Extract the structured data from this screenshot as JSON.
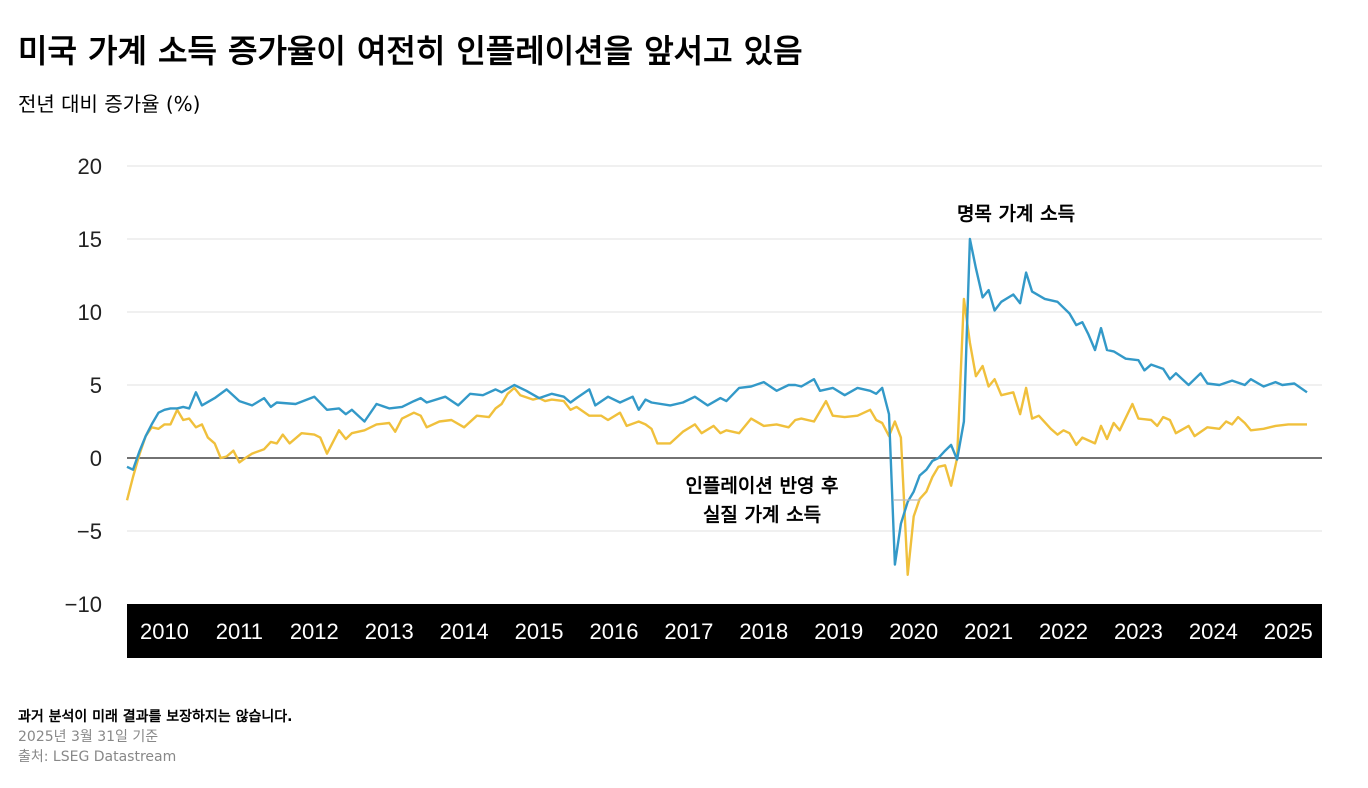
{
  "header": {
    "title": "미국 가계 소득 증가율이 여전히 인플레이션을 앞서고 있음",
    "subtitle": "전년 대비 증가율 (%)"
  },
  "footer": {
    "note": "과거 분석이 미래 결과를 보장하지는 않습니다.",
    "as_of": "2025년 3월 31일 기준",
    "source": "출처: LSEG Datastream"
  },
  "colors": {
    "nominal": "#3399c8",
    "real": "#f0c03c",
    "grid": "#e6e6e6",
    "zero_line": "#444444",
    "axis_band": "#000000"
  },
  "chart_data": {
    "type": "line",
    "ylim": [
      -10,
      20
    ],
    "yticks": [
      "20",
      "15",
      "10",
      "5",
      "0",
      "−5",
      "−10"
    ],
    "ytick_values": [
      20,
      15,
      10,
      5,
      0,
      -5,
      -10
    ],
    "xlim": [
      2010,
      2025.95
    ],
    "xticks": [
      "2010",
      "2011",
      "2012",
      "2013",
      "2014",
      "2015",
      "2016",
      "2017",
      "2018",
      "2019",
      "2020",
      "2021",
      "2022",
      "2023",
      "2024",
      "2025"
    ],
    "grid": true,
    "series": [
      {
        "name": "명목 가계 소득",
        "points": [
          [
            2010.0,
            -0.6
          ],
          [
            2010.08,
            -0.8
          ],
          [
            2010.17,
            0.5
          ],
          [
            2010.25,
            1.5
          ],
          [
            2010.33,
            2.3
          ],
          [
            2010.42,
            3.1
          ],
          [
            2010.5,
            3.3
          ],
          [
            2010.58,
            3.4
          ],
          [
            2010.67,
            3.4
          ],
          [
            2010.75,
            3.5
          ],
          [
            2010.83,
            3.4
          ],
          [
            2010.92,
            4.5
          ],
          [
            2011.0,
            3.6
          ],
          [
            2011.17,
            4.1
          ],
          [
            2011.33,
            4.7
          ],
          [
            2011.5,
            3.9
          ],
          [
            2011.67,
            3.6
          ],
          [
            2011.83,
            4.1
          ],
          [
            2011.92,
            3.5
          ],
          [
            2012.0,
            3.8
          ],
          [
            2012.25,
            3.7
          ],
          [
            2012.5,
            4.2
          ],
          [
            2012.67,
            3.3
          ],
          [
            2012.83,
            3.4
          ],
          [
            2012.92,
            3.0
          ],
          [
            2013.0,
            3.3
          ],
          [
            2013.17,
            2.5
          ],
          [
            2013.33,
            3.7
          ],
          [
            2013.5,
            3.4
          ],
          [
            2013.67,
            3.5
          ],
          [
            2013.83,
            3.9
          ],
          [
            2013.92,
            4.1
          ],
          [
            2014.0,
            3.8
          ],
          [
            2014.25,
            4.2
          ],
          [
            2014.42,
            3.6
          ],
          [
            2014.58,
            4.4
          ],
          [
            2014.75,
            4.3
          ],
          [
            2014.92,
            4.7
          ],
          [
            2015.0,
            4.5
          ],
          [
            2015.17,
            5.0
          ],
          [
            2015.33,
            4.6
          ],
          [
            2015.5,
            4.1
          ],
          [
            2015.67,
            4.4
          ],
          [
            2015.83,
            4.2
          ],
          [
            2015.92,
            3.8
          ],
          [
            2016.0,
            4.1
          ],
          [
            2016.17,
            4.7
          ],
          [
            2016.25,
            3.6
          ],
          [
            2016.42,
            4.2
          ],
          [
            2016.58,
            3.8
          ],
          [
            2016.75,
            4.2
          ],
          [
            2016.83,
            3.3
          ],
          [
            2016.92,
            4.0
          ],
          [
            2017.0,
            3.8
          ],
          [
            2017.25,
            3.6
          ],
          [
            2017.42,
            3.8
          ],
          [
            2017.58,
            4.2
          ],
          [
            2017.75,
            3.6
          ],
          [
            2017.92,
            4.1
          ],
          [
            2018.0,
            3.9
          ],
          [
            2018.17,
            4.8
          ],
          [
            2018.33,
            4.9
          ],
          [
            2018.5,
            5.2
          ],
          [
            2018.67,
            4.6
          ],
          [
            2018.83,
            5.0
          ],
          [
            2018.92,
            5.0
          ],
          [
            2019.0,
            4.9
          ],
          [
            2019.17,
            5.4
          ],
          [
            2019.25,
            4.6
          ],
          [
            2019.42,
            4.8
          ],
          [
            2019.58,
            4.3
          ],
          [
            2019.75,
            4.8
          ],
          [
            2019.92,
            4.6
          ],
          [
            2020.0,
            4.4
          ],
          [
            2020.08,
            4.8
          ],
          [
            2020.17,
            3.0
          ],
          [
            2020.25,
            -7.3
          ],
          [
            2020.33,
            -4.5
          ],
          [
            2020.42,
            -3.0
          ],
          [
            2020.5,
            -2.3
          ],
          [
            2020.58,
            -1.2
          ],
          [
            2020.67,
            -0.8
          ],
          [
            2020.75,
            -0.2
          ],
          [
            2020.83,
            0.0
          ],
          [
            2020.92,
            0.5
          ],
          [
            2021.0,
            0.9
          ],
          [
            2021.08,
            -0.1
          ],
          [
            2021.17,
            2.5
          ],
          [
            2021.25,
            15.0
          ],
          [
            2021.33,
            13.0
          ],
          [
            2021.42,
            11.0
          ],
          [
            2021.5,
            11.5
          ],
          [
            2021.58,
            10.1
          ],
          [
            2021.67,
            10.7
          ],
          [
            2021.83,
            11.2
          ],
          [
            2021.92,
            10.6
          ],
          [
            2022.0,
            12.7
          ],
          [
            2022.08,
            11.4
          ],
          [
            2022.25,
            10.9
          ],
          [
            2022.42,
            10.7
          ],
          [
            2022.58,
            9.9
          ],
          [
            2022.67,
            9.1
          ],
          [
            2022.75,
            9.3
          ],
          [
            2022.83,
            8.5
          ],
          [
            2022.92,
            7.4
          ],
          [
            2023.0,
            8.9
          ],
          [
            2023.08,
            7.4
          ],
          [
            2023.17,
            7.3
          ],
          [
            2023.33,
            6.8
          ],
          [
            2023.5,
            6.7
          ],
          [
            2023.58,
            6.0
          ],
          [
            2023.67,
            6.4
          ],
          [
            2023.83,
            6.1
          ],
          [
            2023.92,
            5.4
          ],
          [
            2024.0,
            5.8
          ],
          [
            2024.17,
            5.0
          ],
          [
            2024.33,
            5.8
          ],
          [
            2024.42,
            5.1
          ],
          [
            2024.58,
            5.0
          ],
          [
            2024.75,
            5.3
          ],
          [
            2024.92,
            5.0
          ],
          [
            2025.0,
            5.4
          ],
          [
            2025.17,
            4.9
          ],
          [
            2025.33,
            5.2
          ],
          [
            2025.42,
            5.0
          ],
          [
            2025.58,
            5.1
          ],
          [
            2025.75,
            4.5
          ]
        ]
      },
      {
        "name": "인플레이션 반영 후 실질 가계 소득",
        "points": [
          [
            2010.0,
            -2.9
          ],
          [
            2010.08,
            -1.3
          ],
          [
            2010.17,
            0.3
          ],
          [
            2010.25,
            1.5
          ],
          [
            2010.33,
            2.1
          ],
          [
            2010.42,
            2.0
          ],
          [
            2010.5,
            2.3
          ],
          [
            2010.58,
            2.3
          ],
          [
            2010.67,
            3.3
          ],
          [
            2010.75,
            2.6
          ],
          [
            2010.83,
            2.7
          ],
          [
            2010.92,
            2.1
          ],
          [
            2011.0,
            2.3
          ],
          [
            2011.08,
            1.4
          ],
          [
            2011.17,
            1.0
          ],
          [
            2011.25,
            0.0
          ],
          [
            2011.33,
            0.1
          ],
          [
            2011.42,
            0.5
          ],
          [
            2011.5,
            -0.3
          ],
          [
            2011.58,
            0.0
          ],
          [
            2011.67,
            0.3
          ],
          [
            2011.83,
            0.6
          ],
          [
            2011.92,
            1.1
          ],
          [
            2012.0,
            1.0
          ],
          [
            2012.08,
            1.6
          ],
          [
            2012.17,
            1.0
          ],
          [
            2012.33,
            1.7
          ],
          [
            2012.5,
            1.6
          ],
          [
            2012.58,
            1.4
          ],
          [
            2012.67,
            0.3
          ],
          [
            2012.83,
            1.9
          ],
          [
            2012.92,
            1.3
          ],
          [
            2013.0,
            1.7
          ],
          [
            2013.17,
            1.9
          ],
          [
            2013.33,
            2.3
          ],
          [
            2013.5,
            2.4
          ],
          [
            2013.58,
            1.8
          ],
          [
            2013.67,
            2.7
          ],
          [
            2013.83,
            3.1
          ],
          [
            2013.92,
            2.9
          ],
          [
            2014.0,
            2.1
          ],
          [
            2014.17,
            2.5
          ],
          [
            2014.33,
            2.6
          ],
          [
            2014.5,
            2.1
          ],
          [
            2014.67,
            2.9
          ],
          [
            2014.83,
            2.8
          ],
          [
            2014.92,
            3.4
          ],
          [
            2015.0,
            3.7
          ],
          [
            2015.08,
            4.4
          ],
          [
            2015.17,
            4.8
          ],
          [
            2015.25,
            4.3
          ],
          [
            2015.42,
            4.0
          ],
          [
            2015.5,
            4.1
          ],
          [
            2015.58,
            3.9
          ],
          [
            2015.67,
            4.0
          ],
          [
            2015.83,
            3.9
          ],
          [
            2015.92,
            3.3
          ],
          [
            2016.0,
            3.5
          ],
          [
            2016.17,
            2.9
          ],
          [
            2016.33,
            2.9
          ],
          [
            2016.42,
            2.6
          ],
          [
            2016.58,
            3.1
          ],
          [
            2016.67,
            2.2
          ],
          [
            2016.83,
            2.5
          ],
          [
            2016.92,
            2.3
          ],
          [
            2017.0,
            2.0
          ],
          [
            2017.08,
            1.0
          ],
          [
            2017.25,
            1.0
          ],
          [
            2017.42,
            1.8
          ],
          [
            2017.58,
            2.3
          ],
          [
            2017.67,
            1.7
          ],
          [
            2017.83,
            2.2
          ],
          [
            2017.92,
            1.7
          ],
          [
            2018.0,
            1.9
          ],
          [
            2018.17,
            1.7
          ],
          [
            2018.33,
            2.7
          ],
          [
            2018.5,
            2.2
          ],
          [
            2018.67,
            2.3
          ],
          [
            2018.83,
            2.1
          ],
          [
            2018.92,
            2.6
          ],
          [
            2019.0,
            2.7
          ],
          [
            2019.17,
            2.5
          ],
          [
            2019.33,
            3.9
          ],
          [
            2019.42,
            2.9
          ],
          [
            2019.58,
            2.8
          ],
          [
            2019.75,
            2.9
          ],
          [
            2019.92,
            3.3
          ],
          [
            2020.0,
            2.6
          ],
          [
            2020.08,
            2.4
          ],
          [
            2020.17,
            1.5
          ],
          [
            2020.25,
            2.5
          ],
          [
            2020.33,
            1.4
          ],
          [
            2020.42,
            -8.0
          ],
          [
            2020.5,
            -4.0
          ],
          [
            2020.58,
            -2.8
          ],
          [
            2020.67,
            -2.3
          ],
          [
            2020.75,
            -1.3
          ],
          [
            2020.83,
            -0.6
          ],
          [
            2020.92,
            -0.5
          ],
          [
            2021.0,
            -1.9
          ],
          [
            2021.08,
            0.0
          ],
          [
            2021.17,
            10.9
          ],
          [
            2021.25,
            7.9
          ],
          [
            2021.33,
            5.6
          ],
          [
            2021.42,
            6.3
          ],
          [
            2021.5,
            4.9
          ],
          [
            2021.58,
            5.4
          ],
          [
            2021.67,
            4.3
          ],
          [
            2021.83,
            4.5
          ],
          [
            2021.92,
            3.0
          ],
          [
            2022.0,
            4.8
          ],
          [
            2022.08,
            2.7
          ],
          [
            2022.17,
            2.9
          ],
          [
            2022.33,
            2.0
          ],
          [
            2022.42,
            1.6
          ],
          [
            2022.5,
            1.9
          ],
          [
            2022.58,
            1.7
          ],
          [
            2022.67,
            0.9
          ],
          [
            2022.75,
            1.4
          ],
          [
            2022.92,
            1.0
          ],
          [
            2023.0,
            2.2
          ],
          [
            2023.08,
            1.3
          ],
          [
            2023.17,
            2.4
          ],
          [
            2023.25,
            1.9
          ],
          [
            2023.42,
            3.7
          ],
          [
            2023.5,
            2.7
          ],
          [
            2023.67,
            2.6
          ],
          [
            2023.75,
            2.2
          ],
          [
            2023.83,
            2.8
          ],
          [
            2023.92,
            2.6
          ],
          [
            2024.0,
            1.7
          ],
          [
            2024.17,
            2.2
          ],
          [
            2024.25,
            1.5
          ],
          [
            2024.42,
            2.1
          ],
          [
            2024.58,
            2.0
          ],
          [
            2024.67,
            2.5
          ],
          [
            2024.75,
            2.3
          ],
          [
            2024.83,
            2.8
          ],
          [
            2024.92,
            2.4
          ],
          [
            2025.0,
            1.9
          ],
          [
            2025.17,
            2.0
          ],
          [
            2025.33,
            2.2
          ],
          [
            2025.5,
            2.3
          ],
          [
            2025.75,
            2.3
          ]
        ]
      }
    ],
    "annotations": [
      {
        "lines": [
          "명목 가계 소득"
        ]
      },
      {
        "lines": [
          "인플레이션 반영 후",
          "실질 가계 소득"
        ]
      }
    ]
  }
}
